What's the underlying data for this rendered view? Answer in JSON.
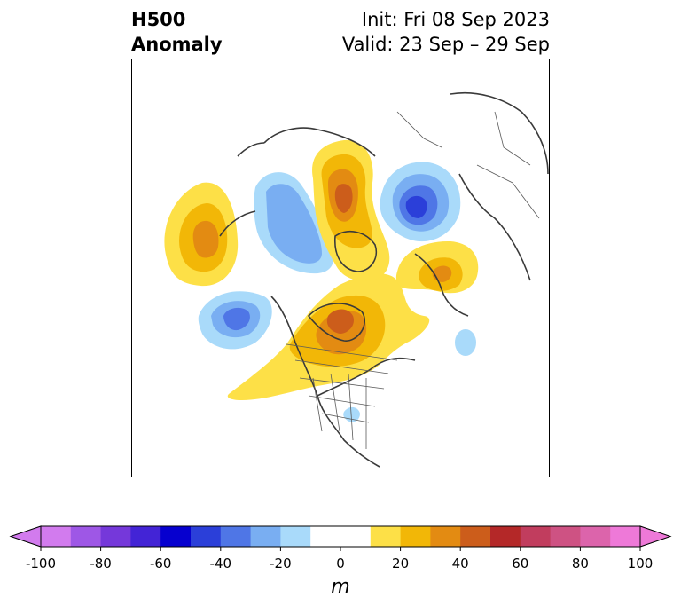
{
  "title": {
    "line1": "H500",
    "line2": "Anomaly",
    "init": "Init: Fri 08 Sep 2023",
    "valid": "Valid: 23 Sep – 29 Sep"
  },
  "colorbar": {
    "unit": "m",
    "tick_labels": [
      "-100",
      "-80",
      "-60",
      "-40",
      "-20",
      "0",
      "20",
      "40",
      "60",
      "80",
      "100"
    ],
    "range": [
      -100,
      100
    ],
    "step": 10,
    "extend": "both",
    "colors": [
      "#d27bee",
      "#9e57e6",
      "#7538da",
      "#4324d6",
      "#0600cf",
      "#2b3fd9",
      "#4f76e6",
      "#79aef2",
      "#a9dafa",
      "#ffffff",
      "#ffffff",
      "#fde047",
      "#f2b707",
      "#e38b12",
      "#cc5d1b",
      "#b42828",
      "#c13d5e",
      "#ce5283",
      "#dc64ab",
      "#ee79d8"
    ]
  },
  "map": {
    "projection": "north polar stereographic",
    "features": [
      "coastlines",
      "country borders",
      "US state boundaries"
    ],
    "anomalies": [
      {
        "sign": "positive",
        "label": "northeast Pacific"
      },
      {
        "sign": "negative",
        "label": "Gulf of Alaska"
      },
      {
        "sign": "negative",
        "label": "northwest Pacific"
      },
      {
        "sign": "positive",
        "label": "Canada / Hudson Bay"
      },
      {
        "sign": "positive",
        "label": "Arctic / Greenland"
      },
      {
        "sign": "negative",
        "label": "Scandinavia / Barents Sea"
      },
      {
        "sign": "positive",
        "label": "central Europe"
      },
      {
        "sign": "negative",
        "label": "eastern United States"
      },
      {
        "sign": "negative",
        "label": "central Atlantic"
      }
    ]
  }
}
